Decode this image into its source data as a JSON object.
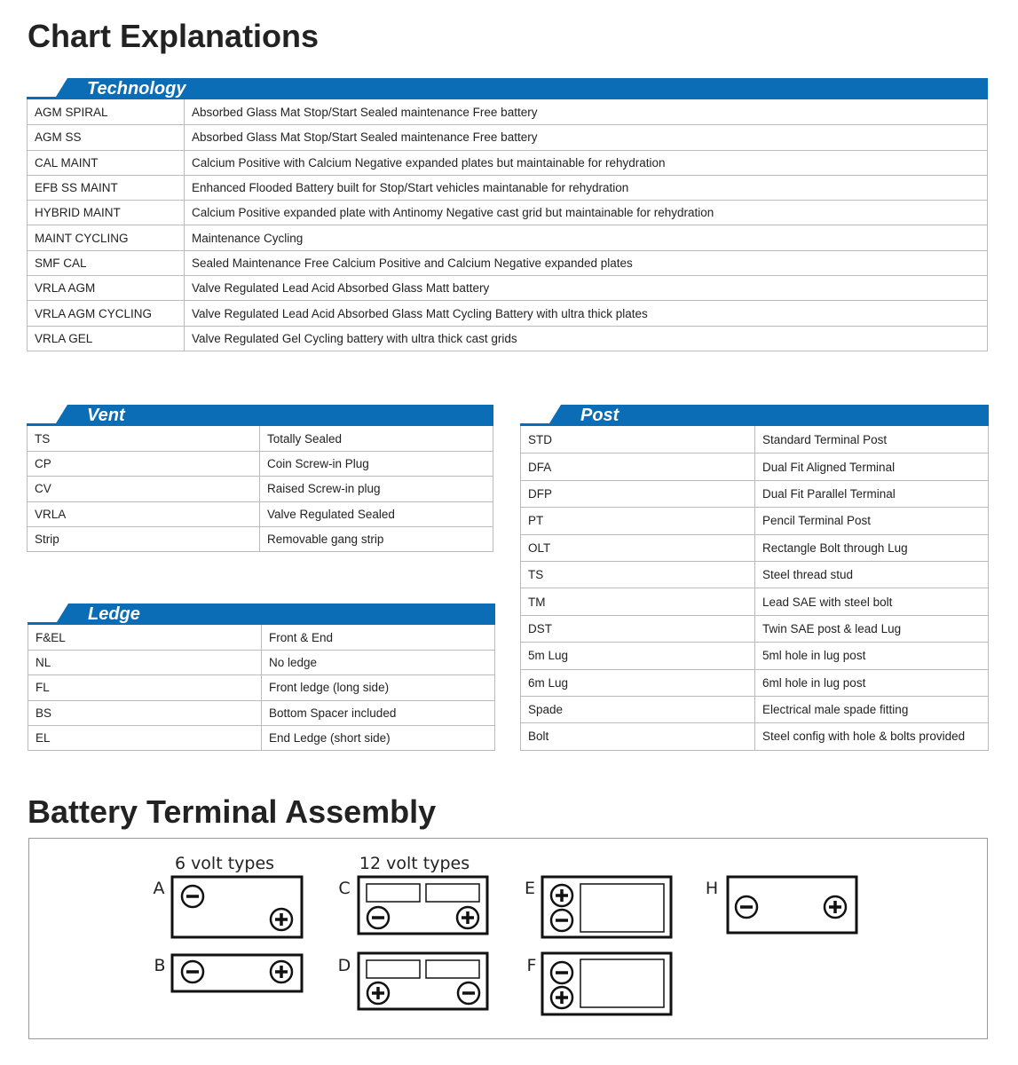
{
  "title": "Chart Explanations",
  "technology": {
    "title": "Technology",
    "rows": [
      [
        "AGM SPIRAL",
        "Absorbed Glass Mat Stop/Start Sealed maintenance Free battery"
      ],
      [
        "AGM SS",
        "Absorbed Glass Mat Stop/Start Sealed maintenance Free battery"
      ],
      [
        "CAL MAINT",
        "Calcium Positive with Calcium Negative expanded plates but maintainable for rehydration"
      ],
      [
        "EFB SS MAINT",
        "Enhanced Flooded Battery built for Stop/Start vehicles maintanable for rehydration"
      ],
      [
        "HYBRID MAINT",
        "Calcium Positive expanded plate with Antinomy Negative cast grid but maintainable for rehydration"
      ],
      [
        "MAINT CYCLING",
        "Maintenance Cycling"
      ],
      [
        "SMF CAL",
        "Sealed Maintenance Free Calcium Positive and Calcium Negative expanded plates"
      ],
      [
        "VRLA AGM",
        "Valve Regulated Lead Acid Absorbed Glass Matt battery"
      ],
      [
        "VRLA AGM CYCLING",
        "Valve Regulated Lead Acid Absorbed Glass Matt Cycling Battery with ultra thick plates"
      ],
      [
        "VRLA GEL",
        "Valve Regulated Gel Cycling battery with ultra thick cast grids"
      ]
    ]
  },
  "vent": {
    "title": "Vent",
    "rows": [
      [
        "TS",
        "Totally Sealed"
      ],
      [
        "CP",
        "Coin Screw-in Plug"
      ],
      [
        "CV",
        "Raised Screw-in plug"
      ],
      [
        "VRLA",
        "Valve Regulated Sealed"
      ],
      [
        "Strip",
        "Removable gang strip"
      ]
    ]
  },
  "ledge": {
    "title": "Ledge",
    "rows": [
      [
        "F&EL",
        "Front & End"
      ],
      [
        "NL",
        "No ledge"
      ],
      [
        "FL",
        "Front ledge (long side)"
      ],
      [
        "BS",
        "Bottom Spacer included"
      ],
      [
        "EL",
        "End Ledge (short side)"
      ]
    ]
  },
  "post": {
    "title": "Post",
    "rows": [
      [
        "STD",
        "Standard Terminal Post"
      ],
      [
        "DFA",
        "Dual Fit Aligned Terminal"
      ],
      [
        "DFP",
        "Dual Fit Parallel Terminal"
      ],
      [
        "PT",
        "Pencil Terminal Post"
      ],
      [
        "OLT",
        "Rectangle Bolt through Lug"
      ],
      [
        "TS",
        "Steel thread stud"
      ],
      [
        "TM",
        "Lead SAE with steel bolt"
      ],
      [
        "DST",
        "Twin SAE post & lead Lug"
      ],
      [
        "5m Lug",
        "5ml hole in lug post"
      ],
      [
        "6m Lug",
        "6ml hole in lug post"
      ],
      [
        "Spade",
        "Electrical male spade fitting"
      ],
      [
        "Bolt",
        "Steel config with hole & bolts provided"
      ]
    ]
  },
  "assembly": {
    "title": "Battery Terminal Assembly",
    "groups": [
      "6 volt types",
      "12 volt types"
    ],
    "labels": [
      "A",
      "B",
      "C",
      "D",
      "E",
      "F",
      "H"
    ]
  }
}
